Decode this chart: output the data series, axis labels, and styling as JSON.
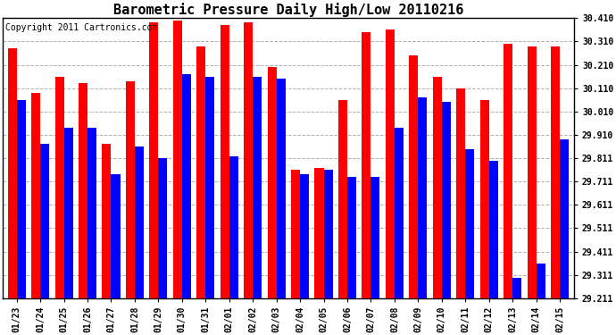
{
  "title": "Barometric Pressure Daily High/Low 20110216",
  "copyright": "Copyright 2011 Cartronics.com",
  "dates": [
    "01/23",
    "01/24",
    "01/25",
    "01/26",
    "01/27",
    "01/28",
    "01/29",
    "01/30",
    "01/31",
    "02/01",
    "02/02",
    "02/03",
    "02/04",
    "02/05",
    "02/06",
    "02/07",
    "02/08",
    "02/09",
    "02/10",
    "02/11",
    "02/12",
    "02/13",
    "02/14",
    "02/15"
  ],
  "highs": [
    30.28,
    30.09,
    30.16,
    30.13,
    29.87,
    30.14,
    30.39,
    30.4,
    30.29,
    30.38,
    30.39,
    30.2,
    29.76,
    29.77,
    30.06,
    30.35,
    30.36,
    30.25,
    30.16,
    30.11,
    30.06,
    30.3,
    30.29,
    30.29
  ],
  "lows": [
    30.06,
    29.87,
    29.94,
    29.94,
    29.74,
    29.86,
    29.81,
    30.17,
    30.16,
    29.82,
    30.16,
    30.15,
    29.74,
    29.76,
    29.73,
    29.73,
    29.94,
    30.07,
    30.05,
    29.85,
    29.8,
    29.3,
    29.36,
    29.89
  ],
  "ylim_min": 29.211,
  "ylim_max": 30.411,
  "ytick_values": [
    29.211,
    29.311,
    29.411,
    29.511,
    29.611,
    29.711,
    29.811,
    29.91,
    30.01,
    30.11,
    30.21,
    30.31,
    30.41
  ],
  "ytick_labels": [
    "29.211",
    "29.311",
    "29.411",
    "29.511",
    "29.611",
    "29.711",
    "29.811",
    "29.910",
    "30.010",
    "30.110",
    "30.210",
    "30.310",
    "30.410"
  ],
  "high_color": "#FF0000",
  "low_color": "#0000FF",
  "bg_color": "#FFFFFF",
  "grid_color": "#B0B0B0",
  "bar_width": 0.38,
  "title_fontsize": 11,
  "copyright_fontsize": 7
}
